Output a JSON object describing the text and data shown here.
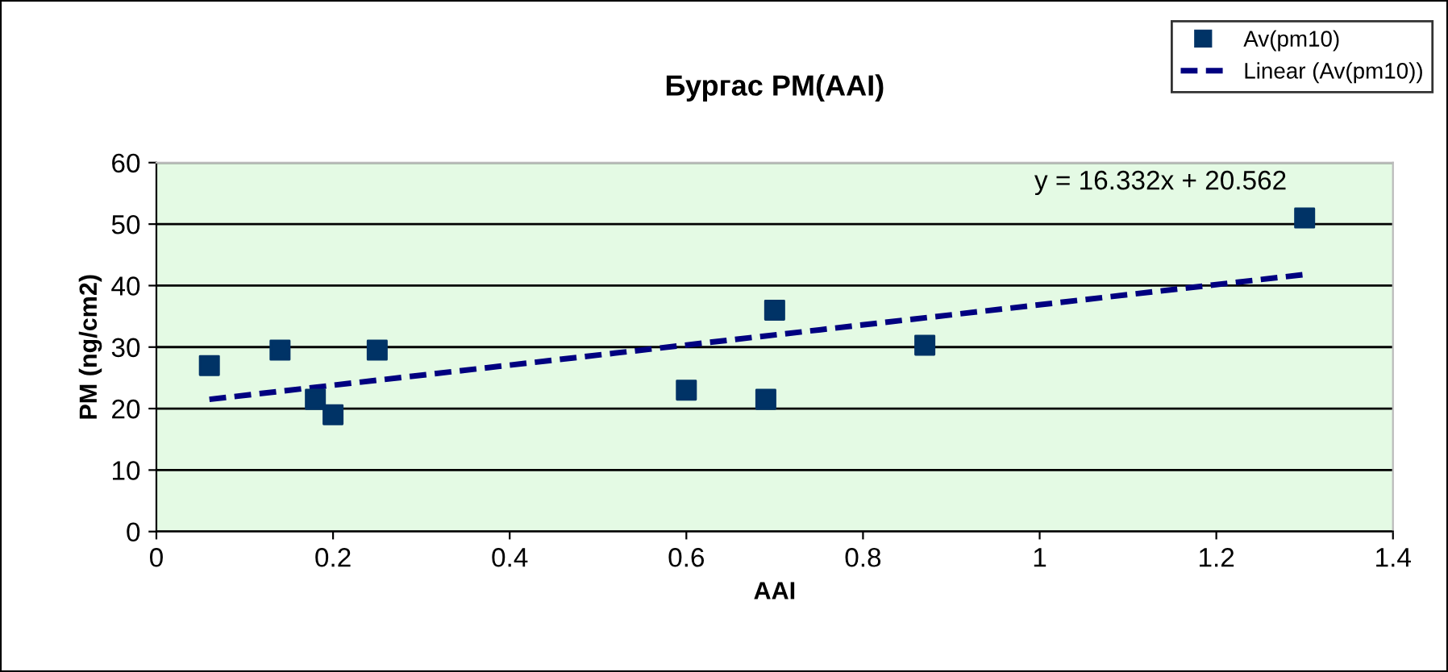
{
  "chart_data": {
    "type": "scatter",
    "title": "Бургас PM(AAI)",
    "xlabel": "AAI",
    "ylabel": "PM (ng/cm2)",
    "x": [
      0.06,
      0.14,
      0.18,
      0.2,
      0.25,
      0.6,
      0.69,
      0.7,
      0.87,
      1.3
    ],
    "series": [
      {
        "name": "Av(pm10)",
        "color": "#003366",
        "marker": "square",
        "values": [
          27,
          29.5,
          21.5,
          19,
          29.5,
          23,
          21.5,
          36,
          30.3,
          51
        ]
      },
      {
        "name": "Linear (Av(pm10))",
        "type": "line",
        "color": "#000080",
        "line_style": "dashed",
        "x": [
          0.06,
          1.3
        ],
        "values": [
          21.5,
          41.8
        ]
      }
    ],
    "annotations": [
      "y = 16.332x + 20.562"
    ],
    "xlim": [
      0,
      1.4
    ],
    "xticks": [
      0,
      0.2,
      0.4,
      0.6,
      0.8,
      1,
      1.2,
      1.4
    ],
    "ylim": [
      0,
      60
    ],
    "yticks": [
      0,
      10,
      20,
      30,
      40,
      50,
      60
    ],
    "grid": "y",
    "legend": "top right"
  }
}
